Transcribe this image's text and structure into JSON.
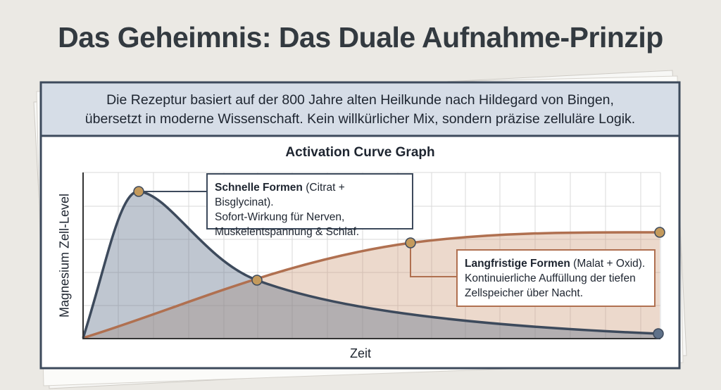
{
  "header": {
    "title": "Das Geheimnis: Das Duale Aufnahme-Prinzip"
  },
  "intro": {
    "lines": [
      "Die Rezeptur basiert auf der 800 Jahre alten Heilkunde nach Hildegard von Bingen,",
      "übersetzt in moderne Wissenschaft. Kein willkürlicher Mix, sondern präzise zelluläre Logik."
    ]
  },
  "chart": {
    "title": "Activation Curve Graph",
    "y_label": "Magnesium Zell-Level",
    "x_label": "Zeit",
    "callouts": [
      {
        "title": "Schnelle Formen",
        "detail": "(Citrat + Bisglycinat).",
        "lines": [
          "Sofort-Wirkung für Nerven,",
          "Muskelentspannung & Schlaf."
        ]
      },
      {
        "title": "Langfristige Formen",
        "detail": "(Malat + Oxid).",
        "lines": [
          "Kontinuierliche Auffüllung der tiefen",
          "Zellspeicher über Nacht."
        ]
      }
    ]
  }
}
